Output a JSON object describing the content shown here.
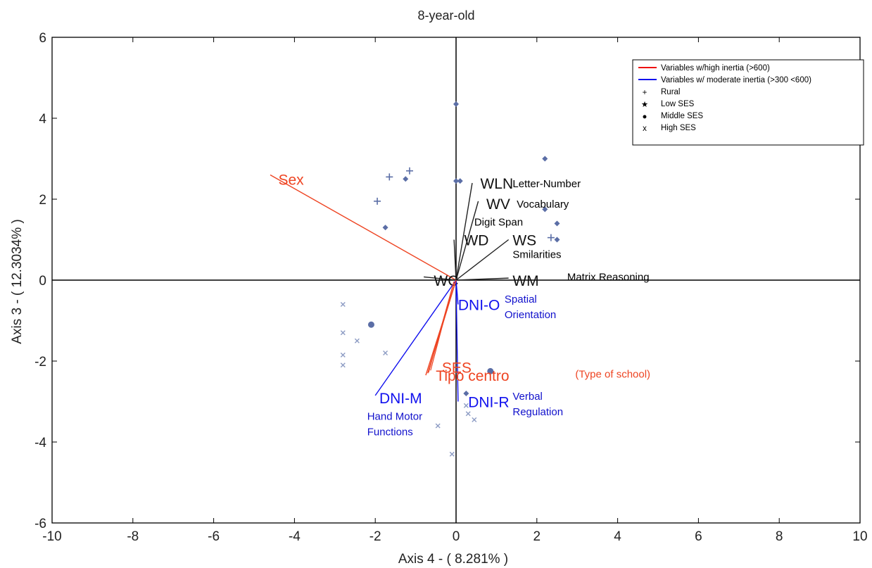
{
  "chart_data": {
    "type": "scatter",
    "title": "8-year-old",
    "xlabel": "Axis 4 - ( 8.281% )",
    "ylabel": "Axis 3 - ( 12.3034% )",
    "xlim": [
      -10,
      10
    ],
    "ylim": [
      -6,
      6
    ],
    "xticks": [
      -10,
      -8,
      -6,
      -4,
      -2,
      0,
      2,
      4,
      6,
      8,
      10
    ],
    "yticks": [
      -6,
      -4,
      -2,
      0,
      2,
      4,
      6
    ],
    "grid": false,
    "zero_lines": true,
    "legend": {
      "placement": "top-right",
      "entries": [
        {
          "label": "Variables w/high inertia (>600)",
          "kind": "line",
          "color": "#ee1111"
        },
        {
          "label": "Variables w/ moderate inertia (>300 <600)",
          "kind": "line",
          "color": "#1111ee"
        },
        {
          "label": "Rural",
          "kind": "marker",
          "symbol": "+"
        },
        {
          "label": "Low SES",
          "kind": "marker",
          "symbol": "★"
        },
        {
          "label": "Middle SES",
          "kind": "marker",
          "symbol": "●"
        },
        {
          "label": "High SES",
          "kind": "marker",
          "symbol": "x"
        }
      ]
    },
    "vectors": [
      {
        "name": "Sex",
        "x": -4.6,
        "y": 2.6,
        "color": "#ee4422",
        "label_x": -4.4,
        "label_y": 2.5
      },
      {
        "name": "WLN",
        "x": 0.4,
        "y": 2.4,
        "color": "#222222",
        "label_x": 0.6,
        "label_y": 2.4,
        "desc": "Letter-Number",
        "desc_x": 1.4,
        "desc_y": 2.4,
        "desc_color": "#000000"
      },
      {
        "name": "WV",
        "x": 0.55,
        "y": 1.95,
        "color": "#222222",
        "label_x": 0.75,
        "label_y": 1.9,
        "desc": "Vocabulary",
        "desc_x": 1.5,
        "desc_y": 1.9,
        "desc_color": "#000000"
      },
      {
        "name": "WD",
        "x": -0.05,
        "y": 1.0,
        "color": "#222222",
        "label_x": 0.2,
        "label_y": 1.0,
        "desc": "Digit Span",
        "desc_x": 0.45,
        "desc_y": 1.45,
        "desc_color": "#000000"
      },
      {
        "name": "WS",
        "x": 1.3,
        "y": 1.0,
        "color": "#222222",
        "label_x": 1.4,
        "label_y": 1.0,
        "desc": "Smilarities",
        "desc_x": 1.4,
        "desc_y": 0.65,
        "desc_color": "#000000"
      },
      {
        "name": "WM",
        "x": 1.3,
        "y": 0.05,
        "color": "#222222",
        "label_x": 1.4,
        "label_y": 0.0,
        "desc": "Matrix Reasoning",
        "desc_x": 2.75,
        "desc_y": 0.1,
        "desc_color": "#000000"
      },
      {
        "name": "WC",
        "x": -0.8,
        "y": 0.08,
        "color": "#222222",
        "label_x": -0.55,
        "label_y": 0.0
      },
      {
        "name": "DNI-O",
        "x": 0.05,
        "y": -0.6,
        "color": "#1111ee",
        "label_x": 0.05,
        "label_y": -0.6,
        "desc": "Spatial\nOrientation",
        "desc_x": 1.2,
        "desc_y": -0.45,
        "desc_color": "#1111cc"
      },
      {
        "name": "DNI-M",
        "x": -2.0,
        "y": -2.85,
        "color": "#1111ee",
        "label_x": -1.9,
        "label_y": -2.9,
        "desc": "Hand Motor\nFunctions",
        "desc_x": -2.2,
        "desc_y": -3.35,
        "desc_color": "#1111cc"
      },
      {
        "name": "DNI-R",
        "x": 0.05,
        "y": -3.0,
        "color": "#1111ee",
        "label_x": 0.3,
        "label_y": -3.0,
        "desc": "Verbal\nRegulation",
        "desc_x": 1.4,
        "desc_y": -2.85,
        "desc_color": "#1111cc"
      },
      {
        "name": "SES",
        "x": -0.7,
        "y": -2.3,
        "color": "#ee4422",
        "label_x": -0.35,
        "label_y": -2.15
      },
      {
        "name": "Tipo centro",
        "x": -0.75,
        "y": -2.35,
        "color": "#ee4422",
        "label_x": -0.5,
        "label_y": -2.35,
        "desc": "(Type of school)",
        "desc_x": 2.95,
        "desc_y": -2.3,
        "desc_color": "#ee4422"
      }
    ],
    "points": [
      {
        "group": "Low SES",
        "x": 0.0,
        "y": 4.35
      },
      {
        "group": "Low SES",
        "x": 0.0,
        "y": 2.45
      },
      {
        "group": "Low SES",
        "x": 0.1,
        "y": 2.45
      },
      {
        "group": "Low SES",
        "x": -1.25,
        "y": 2.5
      },
      {
        "group": "Low SES",
        "x": -1.75,
        "y": 1.3
      },
      {
        "group": "Low SES",
        "x": 2.2,
        "y": 3.0
      },
      {
        "group": "Low SES",
        "x": 2.2,
        "y": 1.75
      },
      {
        "group": "Low SES",
        "x": 2.5,
        "y": 1.4
      },
      {
        "group": "Low SES",
        "x": 2.5,
        "y": 1.0
      },
      {
        "group": "Low SES",
        "x": 0.25,
        "y": -2.8
      },
      {
        "group": "Rural",
        "x": -1.65,
        "y": 2.55
      },
      {
        "group": "Rural",
        "x": -1.15,
        "y": 2.7
      },
      {
        "group": "Rural",
        "x": -1.95,
        "y": 1.95
      },
      {
        "group": "Rural",
        "x": 2.35,
        "y": 1.05
      },
      {
        "group": "Middle SES",
        "x": -2.1,
        "y": -1.1
      },
      {
        "group": "Middle SES",
        "x": 0.85,
        "y": -2.25
      },
      {
        "group": "High SES",
        "x": -2.8,
        "y": -0.6
      },
      {
        "group": "High SES",
        "x": -2.8,
        "y": -1.3
      },
      {
        "group": "High SES",
        "x": -2.45,
        "y": -1.5
      },
      {
        "group": "High SES",
        "x": -2.8,
        "y": -1.85
      },
      {
        "group": "High SES",
        "x": -2.8,
        "y": -2.1
      },
      {
        "group": "High SES",
        "x": -1.75,
        "y": -1.8
      },
      {
        "group": "High SES",
        "x": 0.25,
        "y": -3.1
      },
      {
        "group": "High SES",
        "x": 0.3,
        "y": -3.3
      },
      {
        "group": "High SES",
        "x": 0.45,
        "y": -3.45
      },
      {
        "group": "High SES",
        "x": -0.45,
        "y": -3.6
      },
      {
        "group": "High SES",
        "x": -0.1,
        "y": -4.3
      }
    ]
  }
}
